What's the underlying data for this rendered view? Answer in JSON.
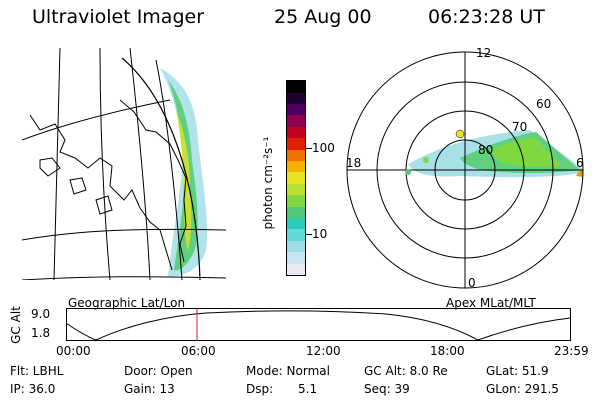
{
  "header": {
    "title": "Ultraviolet Imager",
    "date": "25 Aug 00",
    "time": "06:23:28 UT"
  },
  "map_panel": {
    "caption": "Geographic Lat/Lon"
  },
  "colorbar": {
    "unit_label": "photon cm⁻²s⁻¹",
    "tick_100": "100",
    "tick_10": "10",
    "colors": [
      "#e8e8f0",
      "#c8e4f0",
      "#a0dce8",
      "#60d8d8",
      "#30c8b8",
      "#50c878",
      "#80d840",
      "#b8e030",
      "#e8e020",
      "#f8b000",
      "#f07000",
      "#e02000",
      "#c00020",
      "#900050",
      "#500060",
      "#200030",
      "#000000"
    ]
  },
  "polar_panel": {
    "label_12": "12",
    "label_18": "18",
    "label_6": "6",
    "label_0": "0",
    "label_60": "60",
    "label_70": "70",
    "label_80": "80",
    "caption": "Apex MLat/MLT"
  },
  "timeline": {
    "ylabel": "GC Alt",
    "ytick_top": "9.0",
    "ytick_bottom": "1.8",
    "xticks": [
      "00:00",
      "06:00",
      "12:00",
      "18:00",
      "23:59"
    ],
    "marker_color": "#d02020"
  },
  "footer": {
    "flt": "Flt: LBHL",
    "ip": "IP: 36.0",
    "door": "Door: Open",
    "gain": "Gain: 13",
    "mode": "Mode: Normal",
    "dsp": "Dsp:",
    "dsp_value": "5.1",
    "gc_alt": "GC Alt: 8.0 Re",
    "seq": "Seq: 39",
    "glat": "GLat:  51.9",
    "glon": "GLon: 291.5"
  }
}
